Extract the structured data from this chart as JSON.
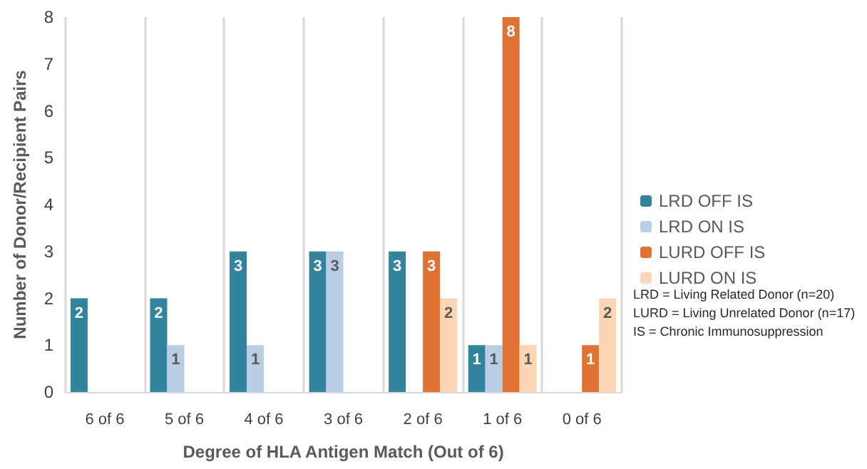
{
  "chart_data": {
    "type": "bar",
    "xlabel": "Degree of HLA Antigen Match (Out of 6)",
    "ylabel": "Number of Donor/Recipient Pairs",
    "categories": [
      "6 of 6",
      "5 of 6",
      "4 of 6",
      "3 of 6",
      "2 of 6",
      "1 of 6",
      "0 of 6"
    ],
    "series": [
      {
        "name": "LRD OFF IS",
        "color": "#31849b",
        "values": [
          2,
          2,
          3,
          3,
          3,
          1,
          0
        ],
        "value_labels": [
          "2",
          "2",
          "3",
          "3",
          "3",
          "1",
          null
        ]
      },
      {
        "name": "LRD ON IS",
        "color": "#b9cde5",
        "values": [
          0,
          1,
          1,
          3,
          0,
          1,
          0
        ],
        "value_labels": [
          null,
          "1",
          "1",
          "3",
          null,
          "1",
          null
        ]
      },
      {
        "name": "LURD OFF IS",
        "color": "#e07233",
        "values": [
          0,
          0,
          0,
          0,
          3,
          8,
          1
        ],
        "value_labels": [
          null,
          null,
          null,
          null,
          "3",
          "8",
          "1"
        ]
      },
      {
        "name": "LURD ON IS",
        "color": "#fcd5b5",
        "values": [
          0,
          0,
          0,
          0,
          2,
          1,
          2
        ],
        "value_labels": [
          null,
          null,
          null,
          null,
          "2",
          "1",
          "2"
        ]
      }
    ],
    "ylim": [
      0,
      8
    ],
    "yticks": [
      0,
      1,
      2,
      3,
      4,
      5,
      6,
      7,
      8
    ],
    "grid": "x",
    "legend": "right",
    "annotations": [
      "LRD = Living Related Donor (n=20)\nLURD = Living Unrelated Donor (n=17)\nIS = Chronic Immunosuppression"
    ]
  }
}
